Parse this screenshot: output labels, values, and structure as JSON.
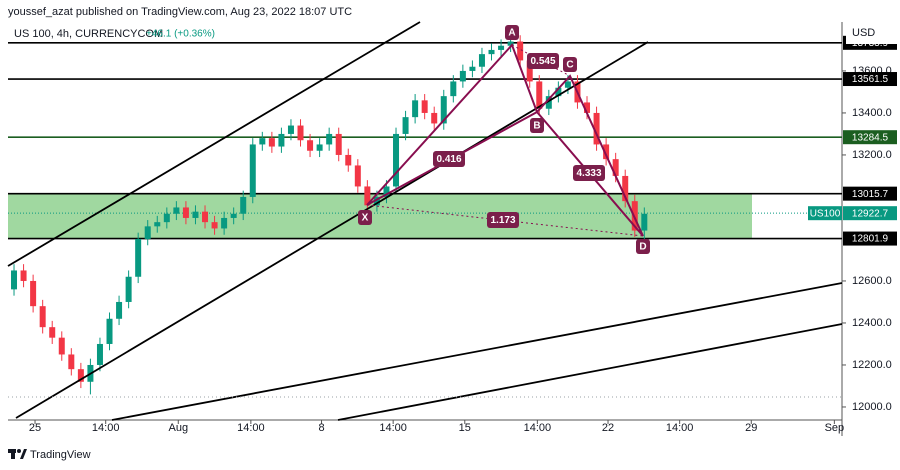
{
  "header": {
    "publisher": "youssef_azat published on TradingView.com, Aug 23, 2022 18:07 UTC",
    "symbol": "US 100, 4h, CURRENCYCOM",
    "change": "+46.1 (+0.36%)",
    "currency": "USD",
    "footer": "TradingView"
  },
  "chart_data": {
    "type": "candlestick",
    "x": [
      0,
      1,
      2,
      3,
      4,
      5,
      6,
      7,
      8,
      9,
      10,
      11,
      12,
      13,
      14,
      15,
      16,
      17,
      18,
      19,
      20,
      21,
      22,
      23,
      24,
      25,
      26,
      27,
      28,
      29,
      30,
      31,
      32,
      33,
      34,
      35,
      36,
      37,
      38,
      39,
      40,
      41,
      42,
      43,
      44,
      45,
      46,
      47,
      48,
      49,
      50,
      51,
      52,
      53,
      54,
      55,
      56,
      57,
      58,
      59,
      60,
      61,
      62,
      63,
      64,
      65,
      66
    ],
    "open": [
      12560,
      12650,
      12600,
      12480,
      12380,
      12330,
      12250,
      12180,
      12120,
      12200,
      12300,
      12420,
      12500,
      12620,
      12800,
      12860,
      12880,
      12920,
      12950,
      12900,
      12930,
      12880,
      12850,
      12900,
      12920,
      13000,
      13250,
      13280,
      13240,
      13300,
      13340,
      13270,
      13220,
      13250,
      13300,
      13200,
      13150,
      13050,
      12960,
      13000,
      13050,
      13300,
      13380,
      13460,
      13400,
      13350,
      13480,
      13550,
      13600,
      13620,
      13680,
      13700,
      13720,
      13740,
      13650,
      13550,
      13420,
      13480,
      13520,
      13550,
      13450,
      13400,
      13250,
      13180,
      13100,
      12980,
      12840
    ],
    "high": [
      12680,
      12680,
      12630,
      12510,
      12410,
      12360,
      12280,
      12210,
      12230,
      12330,
      12450,
      12530,
      12650,
      12830,
      12890,
      12910,
      12950,
      12980,
      12980,
      12960,
      12960,
      12910,
      12930,
      12950,
      13030,
      13280,
      13310,
      13310,
      13330,
      13370,
      13370,
      13300,
      13280,
      13330,
      13330,
      13230,
      13180,
      13080,
      13030,
      13080,
      13330,
      13410,
      13490,
      13490,
      13430,
      13510,
      13580,
      13630,
      13650,
      13710,
      13730,
      13750,
      13770,
      13770,
      13680,
      13580,
      13510,
      13550,
      13580,
      13580,
      13480,
      13430,
      13280,
      13210,
      13130,
      13010,
      12950
    ],
    "low": [
      12530,
      12570,
      12450,
      12350,
      12300,
      12220,
      12150,
      12090,
      12060,
      12170,
      12270,
      12390,
      12470,
      12590,
      12770,
      12830,
      12850,
      12890,
      12870,
      12870,
      12850,
      12820,
      12820,
      12870,
      12890,
      12970,
      13220,
      13210,
      13210,
      13270,
      13240,
      13190,
      13190,
      13220,
      13170,
      13120,
      13020,
      12930,
      12930,
      12970,
      13020,
      13270,
      13350,
      13370,
      13320,
      13320,
      13450,
      13520,
      13570,
      13590,
      13650,
      13670,
      13690,
      13620,
      13520,
      13390,
      13390,
      13450,
      13490,
      13420,
      13370,
      13220,
      13150,
      13070,
      12950,
      12810,
      12800
    ],
    "close": [
      12650,
      12600,
      12480,
      12380,
      12330,
      12250,
      12180,
      12120,
      12200,
      12300,
      12420,
      12500,
      12620,
      12800,
      12860,
      12880,
      12920,
      12950,
      12900,
      12930,
      12880,
      12850,
      12900,
      12920,
      13000,
      13250,
      13280,
      13240,
      13300,
      13340,
      13270,
      13220,
      13250,
      13300,
      13200,
      13150,
      13050,
      12960,
      13000,
      13050,
      13300,
      13380,
      13460,
      13400,
      13350,
      13480,
      13550,
      13600,
      13620,
      13680,
      13700,
      13720,
      13740,
      13650,
      13550,
      13420,
      13480,
      13520,
      13550,
      13450,
      13400,
      13250,
      13180,
      13100,
      12980,
      12840,
      12920
    ],
    "up_color": "#089981",
    "down_color": "#f23645",
    "xlim": [
      -0.63,
      86.7
    ],
    "xticks": [
      {
        "value": 2.2,
        "label": "25"
      },
      {
        "value": 9.6,
        "label": "14:00"
      },
      {
        "value": 17.2,
        "label": "Aug"
      },
      {
        "value": 24.8,
        "label": "14:00"
      },
      {
        "value": 32.2,
        "label": "8"
      },
      {
        "value": 39.7,
        "label": "14:00"
      },
      {
        "value": 47.2,
        "label": "15"
      },
      {
        "value": 54.8,
        "label": "14:00"
      },
      {
        "value": 62.2,
        "label": "22"
      },
      {
        "value": 69.7,
        "label": "14:00"
      },
      {
        "value": 77.2,
        "label": "29"
      },
      {
        "value": 85.9,
        "label": "Sep"
      }
    ],
    "ylim": [
      11938,
      13833
    ],
    "yticks": [
      {
        "value": 12000,
        "label": "12000.0"
      },
      {
        "value": 12200,
        "label": "12200.0"
      },
      {
        "value": 12400,
        "label": "12400.0"
      },
      {
        "value": 12600,
        "label": "12600.0"
      },
      {
        "value": 13200,
        "label": "13200.0"
      },
      {
        "value": 13400,
        "label": "13400.0"
      },
      {
        "value": 13600,
        "label": "13600.0"
      }
    ],
    "levels": [
      {
        "value": 13733.9,
        "color": "#000000"
      },
      {
        "value": 13561.5,
        "color": "#000000"
      },
      {
        "value": 13284.5,
        "color": "#1b5e20"
      },
      {
        "value": 13015.7,
        "color": "#000000"
      },
      {
        "value": 12801.9,
        "color": "#000000"
      }
    ],
    "zone": {
      "from": 12801.9,
      "to": 13015.7,
      "color": "#8fd18f"
    },
    "current": {
      "name": "US100",
      "value": 12922.7,
      "color": "#089981"
    },
    "pattern": {
      "points": [
        "X",
        "A",
        "B",
        "C",
        "D"
      ],
      "ratios": [
        "0.545",
        "0.416",
        "4.333",
        "1.173"
      ]
    }
  }
}
